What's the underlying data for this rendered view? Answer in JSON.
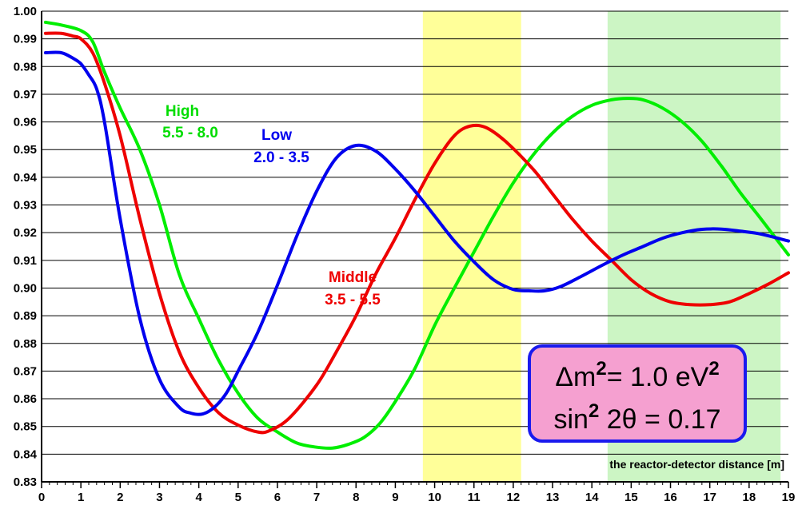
{
  "chart_data": {
    "type": "line",
    "xlabel": "the reactor-detector distance  [m]",
    "ylabel": "",
    "xlim": [
      0,
      19
    ],
    "ylim": [
      0.83,
      1.0
    ],
    "x_ticks": [
      "0",
      "1",
      "2",
      "3",
      "4",
      "5",
      "6",
      "7",
      "8",
      "9",
      "10",
      "11",
      "12",
      "13",
      "14",
      "15",
      "16",
      "17",
      "18",
      "19"
    ],
    "y_ticks": [
      "0.83",
      "0.84",
      "0.85",
      "0.86",
      "0.87",
      "0.88",
      "0.89",
      "0.90",
      "0.91",
      "0.92",
      "0.93",
      "0.94",
      "0.95",
      "0.96",
      "0.97",
      "0.98",
      "0.99",
      "1.00"
    ],
    "grid": "horizontal",
    "bands": [
      {
        "name": "yellow-band",
        "x_start": 9.7,
        "x_end": 12.2,
        "color": "#ffff99"
      },
      {
        "name": "green-band",
        "x_start": 14.4,
        "x_end": 18.8,
        "color": "#ccf5c4"
      }
    ],
    "series": [
      {
        "key": "high",
        "color": "#00ee00",
        "x": [
          0.1,
          0.5,
          1.0,
          1.3,
          1.6,
          2.0,
          2.5,
          3.0,
          3.5,
          4.0,
          4.5,
          5.0,
          5.5,
          6.0,
          6.5,
          7.0,
          7.4,
          7.8,
          8.2,
          8.6,
          9.0,
          9.5,
          10.0,
          10.5,
          11.0,
          11.5,
          12.0,
          12.5,
          13.0,
          13.5,
          14.0,
          14.5,
          14.9,
          15.3,
          15.8,
          16.3,
          16.8,
          17.3,
          17.8,
          18.3,
          19.0
        ],
        "values": [
          0.996,
          0.995,
          0.993,
          0.989,
          0.978,
          0.965,
          0.95,
          0.93,
          0.905,
          0.889,
          0.874,
          0.862,
          0.853,
          0.848,
          0.844,
          0.8425,
          0.8422,
          0.8435,
          0.846,
          0.851,
          0.859,
          0.871,
          0.8865,
          0.9,
          0.913,
          0.926,
          0.938,
          0.948,
          0.956,
          0.962,
          0.966,
          0.968,
          0.9685,
          0.968,
          0.965,
          0.96,
          0.953,
          0.944,
          0.934,
          0.925,
          0.912
        ]
      },
      {
        "key": "middle",
        "color": "#ee0000",
        "x": [
          0.1,
          0.5,
          0.8,
          1.0,
          1.3,
          1.6,
          2.0,
          2.5,
          3.0,
          3.5,
          4.0,
          4.5,
          5.0,
          5.5,
          5.8,
          6.3,
          7.0,
          7.5,
          8.0,
          8.5,
          9.0,
          9.5,
          10.0,
          10.5,
          10.9,
          11.3,
          11.8,
          12.5,
          13.0,
          13.5,
          14.0,
          14.5,
          15.0,
          15.5,
          16.0,
          16.5,
          17.0,
          17.5,
          18.0,
          18.5,
          19.0
        ],
        "values": [
          0.992,
          0.992,
          0.991,
          0.99,
          0.985,
          0.974,
          0.955,
          0.925,
          0.898,
          0.877,
          0.864,
          0.855,
          0.8505,
          0.848,
          0.8485,
          0.853,
          0.865,
          0.877,
          0.89,
          0.905,
          0.918,
          0.932,
          0.945,
          0.955,
          0.9585,
          0.958,
          0.953,
          0.943,
          0.934,
          0.925,
          0.917,
          0.91,
          0.903,
          0.898,
          0.895,
          0.894,
          0.894,
          0.895,
          0.898,
          0.9015,
          0.9055
        ]
      },
      {
        "key": "low",
        "color": "#0000ee",
        "x": [
          0.1,
          0.5,
          0.8,
          1.0,
          1.2,
          1.4,
          1.6,
          2.0,
          2.5,
          3.0,
          3.5,
          3.8,
          4.1,
          4.4,
          4.7,
          5.0,
          5.5,
          6.0,
          6.5,
          7.0,
          7.5,
          8.0,
          8.5,
          9.0,
          9.5,
          10.0,
          10.5,
          11.0,
          11.5,
          12.0,
          12.4,
          12.8,
          13.2,
          13.7,
          14.3,
          14.8,
          15.3,
          15.8,
          16.3,
          16.8,
          17.3,
          17.8,
          18.3,
          19.0
        ],
        "values": [
          0.985,
          0.985,
          0.983,
          0.981,
          0.977,
          0.972,
          0.96,
          0.925,
          0.889,
          0.867,
          0.857,
          0.8548,
          0.8545,
          0.857,
          0.862,
          0.87,
          0.884,
          0.901,
          0.919,
          0.935,
          0.947,
          0.9515,
          0.9495,
          0.943,
          0.935,
          0.926,
          0.917,
          0.9095,
          0.903,
          0.8995,
          0.899,
          0.899,
          0.9005,
          0.904,
          0.9085,
          0.912,
          0.915,
          0.918,
          0.92,
          0.9212,
          0.9213,
          0.9205,
          0.9195,
          0.917
        ]
      }
    ],
    "annotations": [
      {
        "key": "high",
        "label": "High",
        "range": "5.5 - 8.0"
      },
      {
        "key": "low",
        "label": "Low",
        "range": "2.0 - 3.5"
      },
      {
        "key": "middle",
        "label": "Middle",
        "range": "3.5 - 5.5"
      }
    ],
    "param_box": {
      "line1_symbol": "Δm",
      "line1_rest": "= 1.0 eV",
      "line1_exp": "2",
      "line2_prefix": "sin",
      "line2_exp": "2",
      "line2_rest": " 2θ = 0.17",
      "fill": "#f5a0d0",
      "border": "#1a1aee"
    }
  }
}
